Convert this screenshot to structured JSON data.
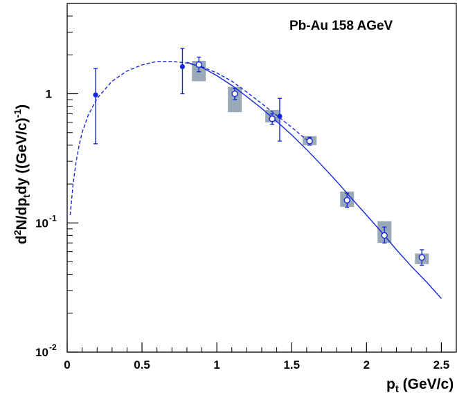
{
  "chart_data": {
    "type": "scatter",
    "annotation": "Pb-Au 158 AGeV",
    "xlabel": {
      "main": "p",
      "sub": "t",
      "rest": " (GeV/c)"
    },
    "ylabel": {
      "d": "d",
      "sup2": "2",
      "n": "N/dp",
      "subt": "t",
      "dy": "dy ((GeV/c)",
      "supm1": "-1",
      "close": ")"
    },
    "xlim": [
      0,
      2.6
    ],
    "ylim": [
      0.01,
      5
    ],
    "yscale": "log",
    "grid": false,
    "color": "#1428d8",
    "box_color": "#9aa9b8",
    "x_ticks": [
      {
        "value": 0,
        "label": "0"
      },
      {
        "value": 0.5,
        "label": "0.5"
      },
      {
        "value": 1,
        "label": "1"
      },
      {
        "value": 1.5,
        "label": "1.5"
      },
      {
        "value": 2,
        "label": "2"
      },
      {
        "value": 2.5,
        "label": "2.5"
      }
    ],
    "y_ticks": [
      {
        "value": 0.01,
        "base": "10",
        "exp": "-2"
      },
      {
        "value": 0.1,
        "base": "10",
        "exp": "-1"
      },
      {
        "value": 1,
        "base": "1",
        "exp": ""
      }
    ],
    "series": [
      {
        "marker": "filled-circle",
        "points": [
          {
            "x": 0.19,
            "y": 0.98,
            "ylo": 0.41,
            "yhi": 1.57
          },
          {
            "x": 0.77,
            "y": 1.62,
            "ylo": 1.0,
            "yhi": 2.25
          },
          {
            "x": 1.42,
            "y": 0.67,
            "ylo": 0.43,
            "yhi": 0.92
          }
        ]
      },
      {
        "marker": "open-circle",
        "points": [
          {
            "x": 0.88,
            "y": 1.68,
            "ylo": 1.48,
            "yhi": 1.92,
            "sys_lo": 1.25,
            "sys_hi": 1.8
          },
          {
            "x": 1.12,
            "y": 1.0,
            "ylo": 0.9,
            "yhi": 1.1,
            "sys_lo": 0.72,
            "sys_hi": 1.13
          },
          {
            "x": 1.37,
            "y": 0.64,
            "ylo": 0.58,
            "yhi": 0.7,
            "sys_lo": 0.6,
            "sys_hi": 0.75
          },
          {
            "x": 1.62,
            "y": 0.43,
            "ylo": 0.4,
            "yhi": 0.46,
            "sys_lo": 0.4,
            "sys_hi": 0.47
          },
          {
            "x": 1.87,
            "y": 0.15,
            "ylo": 0.132,
            "yhi": 0.17,
            "sys_lo": 0.133,
            "sys_hi": 0.175
          },
          {
            "x": 2.12,
            "y": 0.08,
            "ylo": 0.07,
            "yhi": 0.093,
            "sys_lo": 0.07,
            "sys_hi": 0.103
          },
          {
            "x": 2.37,
            "y": 0.054,
            "ylo": 0.047,
            "yhi": 0.062,
            "sys_lo": 0.048,
            "sys_hi": 0.058
          }
        ]
      }
    ],
    "curves": [
      {
        "style": "dashed",
        "points": [
          [
            0.02,
            0.115
          ],
          [
            0.04,
            0.2
          ],
          [
            0.06,
            0.3
          ],
          [
            0.08,
            0.4
          ],
          [
            0.1,
            0.5
          ],
          [
            0.14,
            0.68
          ],
          [
            0.2,
            0.92
          ],
          [
            0.3,
            1.25
          ],
          [
            0.4,
            1.5
          ],
          [
            0.5,
            1.67
          ],
          [
            0.6,
            1.78
          ],
          [
            0.7,
            1.78
          ],
          [
            0.8,
            1.73
          ],
          [
            0.9,
            1.62
          ],
          [
            1.0,
            1.45
          ],
          [
            1.1,
            1.25
          ],
          [
            1.2,
            1.03
          ],
          [
            1.3,
            0.84
          ],
          [
            1.4,
            0.68
          ],
          [
            1.5,
            0.55
          ],
          [
            1.6,
            0.44
          ]
        ]
      },
      {
        "style": "solid",
        "points": [
          [
            0.8,
            1.75
          ],
          [
            0.9,
            1.6
          ],
          [
            1.0,
            1.38
          ],
          [
            1.1,
            1.16
          ],
          [
            1.2,
            0.95
          ],
          [
            1.3,
            0.77
          ],
          [
            1.4,
            0.61
          ],
          [
            1.5,
            0.48
          ],
          [
            1.6,
            0.37
          ],
          [
            1.7,
            0.28
          ],
          [
            1.8,
            0.21
          ],
          [
            1.9,
            0.155
          ],
          [
            2.0,
            0.115
          ],
          [
            2.1,
            0.085
          ],
          [
            2.2,
            0.062
          ],
          [
            2.3,
            0.046
          ],
          [
            2.4,
            0.035
          ],
          [
            2.5,
            0.026
          ]
        ]
      }
    ]
  }
}
